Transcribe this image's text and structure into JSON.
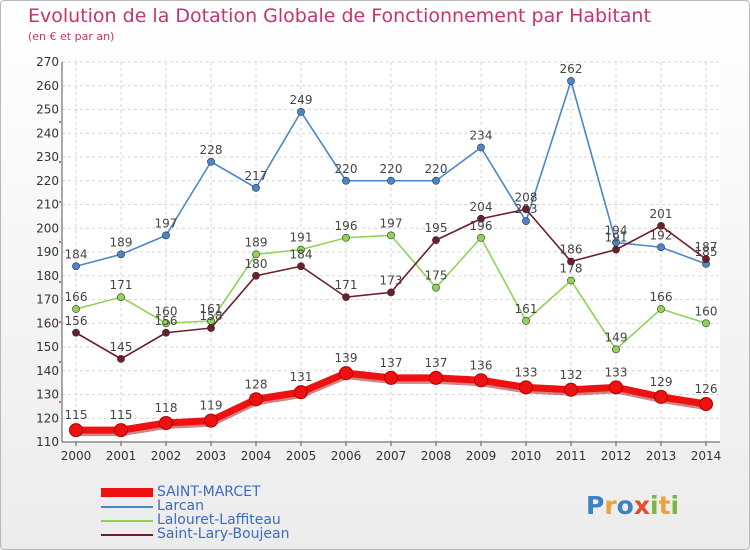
{
  "title": "Evolution de la Dotation Globale de Fonctionnement par Habitant",
  "subtitle": "(en € et par an)",
  "logo": {
    "text": "Proxiti",
    "letters": [
      "P",
      "r",
      "o",
      "x",
      "i",
      "t",
      "i"
    ],
    "colors": [
      "#3b82c4",
      "#e8a33d",
      "#3b82c4",
      "#e84a2c",
      "#7ab648",
      "#e8a33d",
      "#7ab648"
    ]
  },
  "chart_data": {
    "type": "line",
    "x": [
      "2000",
      "2001",
      "2002",
      "2003",
      "2004",
      "2005",
      "2006",
      "2007",
      "2008",
      "2009",
      "2010",
      "2011",
      "2012",
      "2013",
      "2014"
    ],
    "ylim": [
      110,
      270
    ],
    "yticks": [
      "110",
      "120",
      "130",
      "140",
      "150",
      "160",
      "170",
      "180",
      "190",
      "200",
      "210",
      "220",
      "230",
      "240",
      "250",
      "260",
      "270"
    ],
    "grid": true,
    "legend_position": "bottom-left",
    "series": [
      {
        "name": "Larcan",
        "color": "#4a86c8",
        "values": [
          184,
          189,
          197,
          228,
          217,
          249,
          220,
          220,
          220,
          234,
          203,
          262,
          194,
          192,
          185
        ],
        "labels": [
          "184",
          "189",
          "197",
          "228",
          "217",
          "249",
          "220",
          "220",
          "220",
          "234",
          "203",
          "262",
          "194",
          "192",
          "185"
        ]
      },
      {
        "name": "Lalouret-Laffiteau",
        "color": "#8ed454",
        "values": [
          166,
          171,
          160,
          161,
          189,
          191,
          196,
          197,
          175,
          196,
          161,
          178,
          149,
          166,
          160
        ],
        "labels": [
          "166",
          "171",
          "160",
          "161",
          "189",
          "191",
          "196",
          "197",
          "175",
          "196",
          "161",
          "178",
          "149",
          "166",
          "160"
        ]
      },
      {
        "name": "Saint-Lary-Boujean",
        "color": "#6b1f2a",
        "values": [
          156,
          145,
          156,
          158,
          180,
          184,
          171,
          173,
          195,
          204,
          208,
          186,
          191,
          201,
          187
        ],
        "labels": [
          "156",
          "145",
          "156",
          "158",
          "180",
          "184",
          "171",
          "173",
          "195",
          "204",
          "208",
          "186",
          "191",
          "201",
          "187"
        ]
      },
      {
        "name": "SAINT-MARCET",
        "color": "#ee1111",
        "values": [
          115,
          115,
          118,
          119,
          128,
          131,
          139,
          137,
          137,
          136,
          133,
          132,
          133,
          129,
          126
        ],
        "labels": [
          "115",
          "115",
          "118",
          "119",
          "128",
          "131",
          "139",
          "137",
          "137",
          "136",
          "133",
          "132",
          "133",
          "129",
          "126"
        ]
      }
    ]
  }
}
